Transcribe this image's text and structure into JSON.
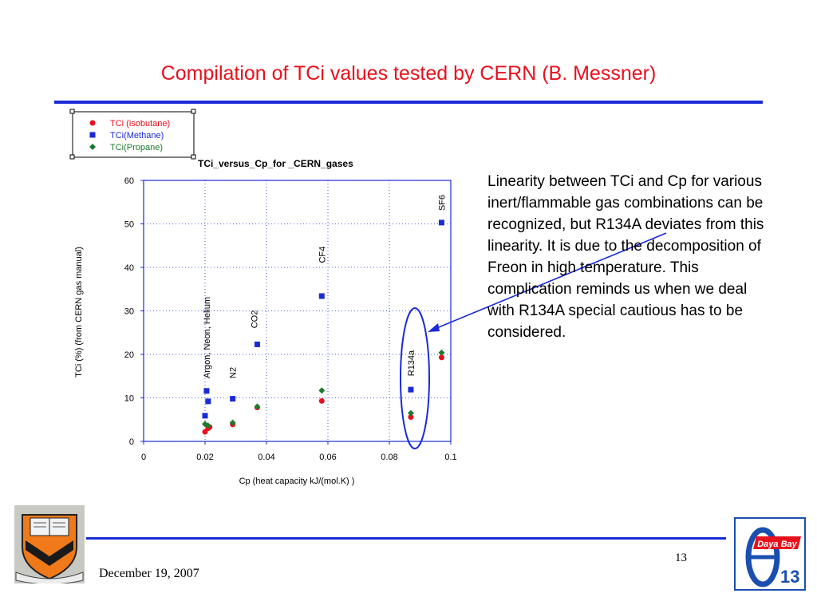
{
  "slide": {
    "title": "Compilation of TCi values tested by CERN (B. Messner)",
    "body": "Linearity between TCi and Cp for various inert/flammable gas combinations can be  recognized, but R134A deviates from this linearity. It is due to the decomposition of Freon in high temperature. This complication reminds us when we deal with R134A special cautious has to be considered.",
    "footer_date": "December 19, 2007",
    "page_number": "13",
    "logo_right": {
      "line1": "Daya Bay",
      "line2": "13"
    }
  },
  "colors": {
    "title": "#e8101c",
    "rule": "#1a2bd6",
    "isobutane": "#e8101c",
    "methane": "#1a2bd6",
    "propane": "#1e7a2e",
    "annotation": "#1a2bd6"
  },
  "chart_data": {
    "type": "scatter",
    "title": "TCi_versus_Cp_for _CERN_gases",
    "xlabel": "Cp (heat capacity kJ/(mol.K) )",
    "ylabel": "TCi  (%) (from CERN gas manual)",
    "xlim": [
      0,
      0.1
    ],
    "ylim": [
      0,
      60
    ],
    "xticks": [
      "0",
      "0.02",
      "0.04",
      "0.06",
      "0.08",
      "0.1"
    ],
    "yticks": [
      "0",
      "10",
      "20",
      "30",
      "40",
      "50",
      "60"
    ],
    "grid": true,
    "legend": "top-left",
    "series": [
      {
        "name": "TCi (isobutane)",
        "marker": "circle",
        "color": "#e8101c",
        "points": [
          [
            0.02,
            2.2
          ],
          [
            0.021,
            3.0
          ],
          [
            0.0215,
            3.3
          ],
          [
            0.029,
            3.9
          ],
          [
            0.037,
            7.8
          ],
          [
            0.058,
            9.3
          ],
          [
            0.087,
            5.6
          ],
          [
            0.097,
            19.3
          ]
        ]
      },
      {
        "name": "TCi(Methane)",
        "marker": "square",
        "color": "#1a2bd6",
        "points": [
          [
            0.02,
            5.9
          ],
          [
            0.0205,
            11.6
          ],
          [
            0.021,
            9.2
          ],
          [
            0.029,
            9.8
          ],
          [
            0.037,
            22.3
          ],
          [
            0.058,
            33.4
          ],
          [
            0.087,
            11.9
          ],
          [
            0.097,
            50.3
          ]
        ]
      },
      {
        "name": "TCi(Propane)",
        "marker": "diamond",
        "color": "#1e7a2e",
        "points": [
          [
            0.02,
            4.0
          ],
          [
            0.021,
            3.6
          ],
          [
            0.029,
            4.3
          ],
          [
            0.037,
            8.0
          ],
          [
            0.058,
            11.7
          ],
          [
            0.087,
            6.5
          ],
          [
            0.097,
            20.4
          ]
        ]
      }
    ],
    "gas_labels": [
      {
        "text": "Argon, Neon, Helium",
        "x": 0.0205,
        "y": 14.5
      },
      {
        "text": "N2",
        "x": 0.029,
        "y": 14.5
      },
      {
        "text": "CO2",
        "x": 0.036,
        "y": 26.0
      },
      {
        "text": "CF4",
        "x": 0.058,
        "y": 41.0
      },
      {
        "text": "R134a",
        "x": 0.087,
        "y": 15.0
      },
      {
        "text": "SF6",
        "x": 0.097,
        "y": 53.0
      }
    ]
  }
}
